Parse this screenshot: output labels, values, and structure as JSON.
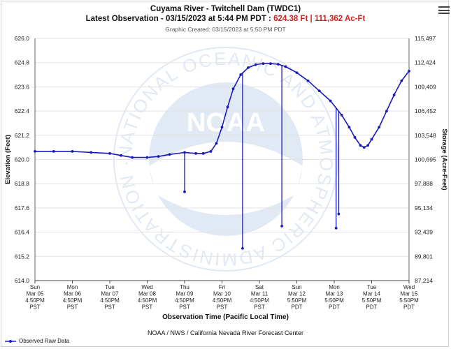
{
  "chart_data": {
    "type": "line",
    "title": "Cuyama River - Twitchell Dam (TWDC1)",
    "subtitle_prefix": "Latest Observation - 03/15/2023 at 5:44 PM PDT : ",
    "latest_elevation": "624.38 Ft",
    "separator": " | ",
    "latest_storage": "111,362 Ac-Ft",
    "created": "Graphic Created: 03/15/2023 at 5:50 PM PDT",
    "xlabel": "Observation Time (Pacific Local Time)",
    "ylabel": "Elevation (Feet)",
    "ylabel_right": "Storage (Acre-Feet)",
    "ylim": [
      614.0,
      626.0
    ],
    "y_ticks": [
      "626.0",
      "624.8",
      "623.6",
      "622.4",
      "621.2",
      "620.0",
      "618.8",
      "617.6",
      "616.4",
      "615.2",
      "614.0"
    ],
    "storage_ticks": [
      "115,497",
      "112,424",
      "109,409",
      "106,452",
      "103,548",
      "100,695",
      "97,888",
      "95,134",
      "92,439",
      "89,801",
      "87,214"
    ],
    "x_range_days": [
      0,
      10
    ],
    "x_ticks": [
      {
        "day": 0,
        "lines": [
          "Sun",
          "Mar 05",
          "4:50PM",
          "PST"
        ]
      },
      {
        "day": 1,
        "lines": [
          "Mon",
          "Mar 06",
          "4:50PM",
          "PST"
        ]
      },
      {
        "day": 2,
        "lines": [
          "Tue",
          "Mar 07",
          "4:50PM",
          "PST"
        ]
      },
      {
        "day": 3,
        "lines": [
          "Wed",
          "Mar 08",
          "4:50PM",
          "PST"
        ]
      },
      {
        "day": 4,
        "lines": [
          "Thu",
          "Mar 09",
          "4:50PM",
          "PST"
        ]
      },
      {
        "day": 5,
        "lines": [
          "Fri",
          "Mar 10",
          "4:50PM",
          "PST"
        ]
      },
      {
        "day": 6,
        "lines": [
          "Sat",
          "Mar 11",
          "4:50PM",
          "PST"
        ]
      },
      {
        "day": 7,
        "lines": [
          "Sun",
          "Mar 12",
          "5:50PM",
          "PDT"
        ]
      },
      {
        "day": 8,
        "lines": [
          "Mon",
          "Mar 13",
          "5:50PM",
          "PDT"
        ]
      },
      {
        "day": 9,
        "lines": [
          "Tue",
          "Mar 14",
          "5:50PM",
          "PDT"
        ]
      },
      {
        "day": 10,
        "lines": [
          "Wed",
          "Mar 15",
          "5:50PM",
          "PDT"
        ]
      }
    ],
    "series": [
      {
        "name": "Observed Raw Data",
        "color": "#1a1ab8",
        "points": [
          [
            0.0,
            620.4
          ],
          [
            0.5,
            620.4
          ],
          [
            1.0,
            620.4
          ],
          [
            1.5,
            620.35
          ],
          [
            2.0,
            620.3
          ],
          [
            2.3,
            620.2
          ],
          [
            2.6,
            620.1
          ],
          [
            3.0,
            620.1
          ],
          [
            3.3,
            620.15
          ],
          [
            3.6,
            620.25
          ],
          [
            4.0,
            620.35
          ],
          [
            4.3,
            620.3
          ],
          [
            4.5,
            620.3
          ],
          [
            4.7,
            620.4
          ],
          [
            4.85,
            620.8
          ],
          [
            5.0,
            621.6
          ],
          [
            5.15,
            622.6
          ],
          [
            5.3,
            623.5
          ],
          [
            5.5,
            624.2
          ],
          [
            5.7,
            624.55
          ],
          [
            5.9,
            624.7
          ],
          [
            6.1,
            624.75
          ],
          [
            6.3,
            624.75
          ],
          [
            6.5,
            624.72
          ],
          [
            6.7,
            624.6
          ],
          [
            7.0,
            624.3
          ],
          [
            7.3,
            623.9
          ],
          [
            7.6,
            623.4
          ],
          [
            7.9,
            622.9
          ],
          [
            8.2,
            622.2
          ],
          [
            8.4,
            621.6
          ],
          [
            8.55,
            621.1
          ],
          [
            8.7,
            620.7
          ],
          [
            8.8,
            620.6
          ],
          [
            8.9,
            620.7
          ],
          [
            9.0,
            621.0
          ],
          [
            9.2,
            621.6
          ],
          [
            9.4,
            622.4
          ],
          [
            9.6,
            623.2
          ],
          [
            9.8,
            623.9
          ],
          [
            10.0,
            624.38
          ]
        ],
        "spikes": [
          {
            "day": 4.0,
            "value": 618.4
          },
          {
            "day": 5.55,
            "value": 615.6
          },
          {
            "day": 6.6,
            "value": 616.7
          },
          {
            "day": 8.05,
            "value": 616.6
          },
          {
            "day": 8.12,
            "value": 617.3
          }
        ]
      }
    ]
  },
  "footer": {
    "credit": "NOAA / NWS / California Nevada River Forecast Center",
    "legend_label": "Observed Raw Data"
  },
  "watermark": {
    "logo_text": "NOAA",
    "ring_text": "NATIONAL OCEANIC AND ATMOSPHERIC ADMINISTRATION · U.S. DEPARTMENT OF COMMERCE"
  },
  "menu_icon": "hamburger-menu-icon"
}
